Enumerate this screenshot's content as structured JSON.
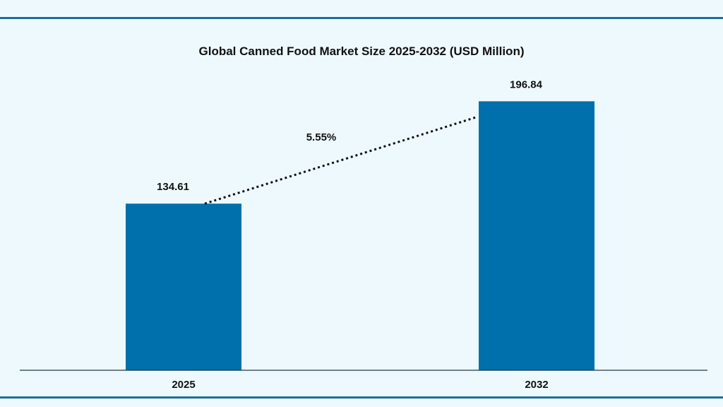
{
  "chart_data": {
    "type": "bar",
    "title": "Global Canned Food Market Size 2025-2032 (USD Million)",
    "categories": [
      "2025",
      "2032"
    ],
    "values": [
      134.61,
      196.84
    ],
    "value_labels": [
      "134.61",
      "196.84"
    ],
    "annotation": "5.55%",
    "xlabel": "",
    "ylabel": "",
    "ylim": [
      33.3,
      200
    ],
    "grid": false,
    "legend": "none",
    "colors": {
      "bar": "#0070ad",
      "background": "#eef9fe",
      "rule": "#1b6e9b",
      "trend_line": "#111111"
    }
  }
}
